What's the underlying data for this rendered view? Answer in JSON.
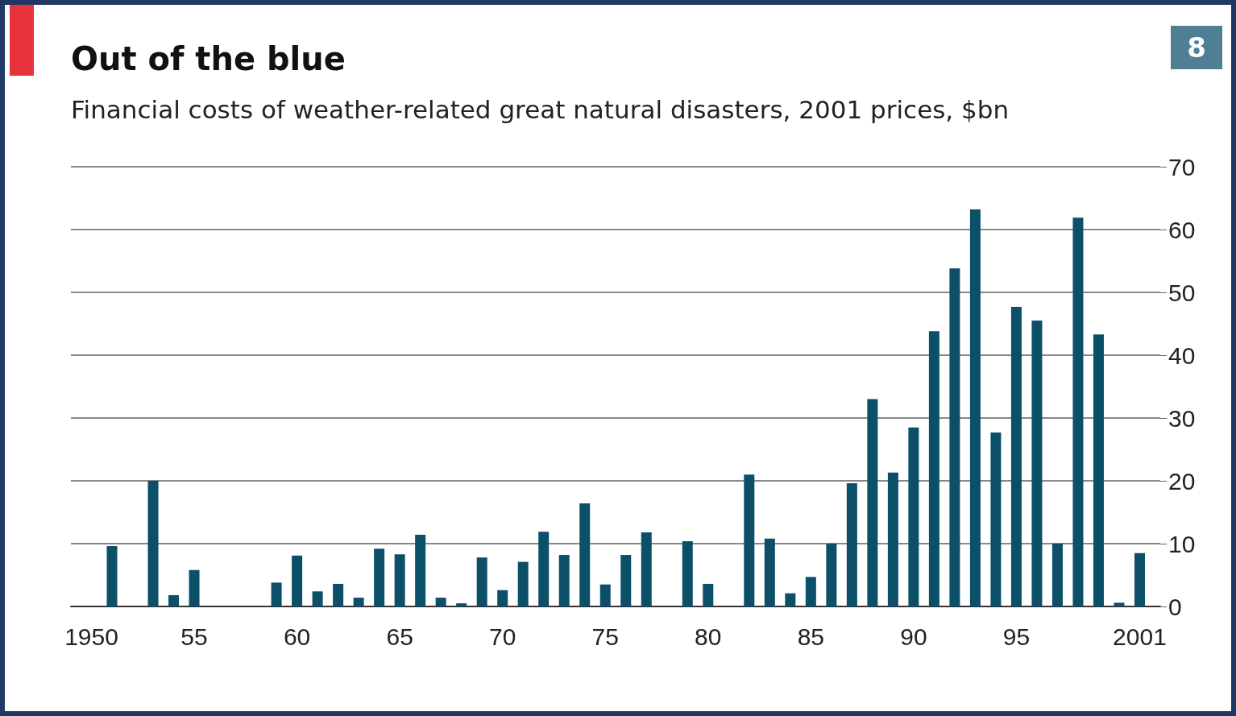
{
  "chart_data": {
    "type": "bar",
    "title": "Out of the blue",
    "subtitle": "Financial costs of weather-related great natural disasters, 2001 prices, $bn",
    "annotations": [
      "8"
    ],
    "x": [
      1951,
      1953,
      1954,
      1955,
      1959,
      1960,
      1961,
      1962,
      1963,
      1964,
      1965,
      1966,
      1967,
      1968,
      1969,
      1970,
      1971,
      1972,
      1973,
      1974,
      1975,
      1976,
      1977,
      1979,
      1980,
      1982,
      1983,
      1984,
      1985,
      1986,
      1987,
      1988,
      1989,
      1990,
      1991,
      1992,
      1993,
      1994,
      1995,
      1996,
      1997,
      1998,
      1999,
      2000,
      2001
    ],
    "values": [
      9.6,
      20,
      1.8,
      5.8,
      3.8,
      8.1,
      2.4,
      3.6,
      1.4,
      9.2,
      8.3,
      11.4,
      1.4,
      0.5,
      7.8,
      2.6,
      7.1,
      11.9,
      8.2,
      16.4,
      3.5,
      8.2,
      11.8,
      10.4,
      3.6,
      21,
      10.8,
      2.1,
      4.7,
      10,
      19.6,
      33,
      21.3,
      28.5,
      43.8,
      53.8,
      63.2,
      27.7,
      47.7,
      45.5,
      10,
      61.9,
      43.3,
      0.6,
      8.5
    ],
    "color": "#0b5068",
    "xlim": [
      1949,
      2002
    ],
    "xticks": [
      1950,
      {
        "value": 1955,
        "label": "55"
      },
      {
        "value": 1960,
        "label": "60"
      },
      {
        "value": 1965,
        "label": "65"
      },
      {
        "value": 1970,
        "label": "70"
      },
      {
        "value": 1975,
        "label": "75"
      },
      {
        "value": 1980,
        "label": "80"
      },
      {
        "value": 1985,
        "label": "85"
      },
      {
        "value": 1990,
        "label": "90"
      },
      {
        "value": 1995,
        "label": "95"
      },
      2001
    ],
    "ylim": [
      0,
      70
    ],
    "yticks": [
      0,
      10,
      20,
      30,
      40,
      50,
      60,
      70
    ],
    "grid": "y"
  }
}
